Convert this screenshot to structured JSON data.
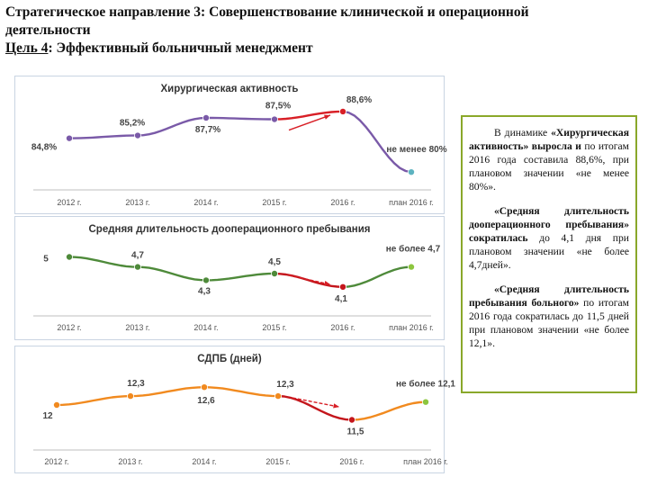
{
  "header": {
    "line1": "Стратегическое направление 3: Совершенствование клинической и операционной",
    "line2": "деятельности",
    "goal_label": "Цель 4",
    "goal_text": ": Эффективный больничный менеджмент"
  },
  "notes": {
    "p1_lead": "В динамике ",
    "p1_bold": "«Хирургическая активность» выросла и",
    "p1_rest": " по итогам 2016 года составила 88,6%, при плановом значении «не менее 80%».",
    "p2_bold": "«Средняя длительность дооперационного пребывания» сократилась",
    "p2_rest": " до 4,1 дня при плановом значении «не более 4,7дней».",
    "p3_bold": "«Средняя длительность пребывания больного»",
    "p3_rest": " по итогам 2016 года сократилась до 11,5 дней при плановом значении «не более 12,1»."
  },
  "chart_data": [
    {
      "type": "line",
      "title": "Хирургическая активность",
      "categories": [
        "2012 г.",
        "2013 г.",
        "2014 г.",
        "2015 г.",
        "2016 г.",
        "план 2016 г."
      ],
      "values": [
        84.8,
        85.2,
        87.7,
        87.5,
        88.6,
        80
      ],
      "labels": [
        "84,8%",
        "85,2%",
        "87,7%",
        "87,5%",
        "88,6%",
        "не менее 80%"
      ],
      "ylim": [
        79,
        90
      ],
      "colors": {
        "line": "#7a5aa8",
        "highlight": "#d81f26",
        "plan": "#5db3c0"
      }
    },
    {
      "type": "line",
      "title": "Средняя длительность дооперационного пребывания",
      "categories": [
        "2012 г.",
        "2013 г.",
        "2014 г.",
        "2015 г.",
        "2016 г.",
        "план 2016 г."
      ],
      "values": [
        5,
        4.7,
        4.3,
        4.5,
        4.1,
        4.7
      ],
      "labels": [
        "5",
        "4,7",
        "4,3",
        "4,5",
        "4,1",
        "не более 4,7"
      ],
      "ylim": [
        3.5,
        5.5
      ],
      "colors": {
        "line": "#4e8a3a",
        "highlight": "#c4161c",
        "plan": "#8dc63f"
      }
    },
    {
      "type": "line",
      "title": "СДПБ (дней)",
      "categories": [
        "2012 г.",
        "2013 г.",
        "2014 г.",
        "2015 г.",
        "2016 г.",
        "план 2016 г."
      ],
      "values": [
        12,
        12.3,
        12.6,
        12.3,
        11.5,
        12.1
      ],
      "labels": [
        "12",
        "12,3",
        "12,6",
        "12,3",
        "11,5",
        "не более 12,1"
      ],
      "ylim": [
        11,
        13
      ],
      "colors": {
        "line": "#f18a1f",
        "highlight": "#c4161c",
        "plan": "#8dc63f"
      }
    }
  ]
}
